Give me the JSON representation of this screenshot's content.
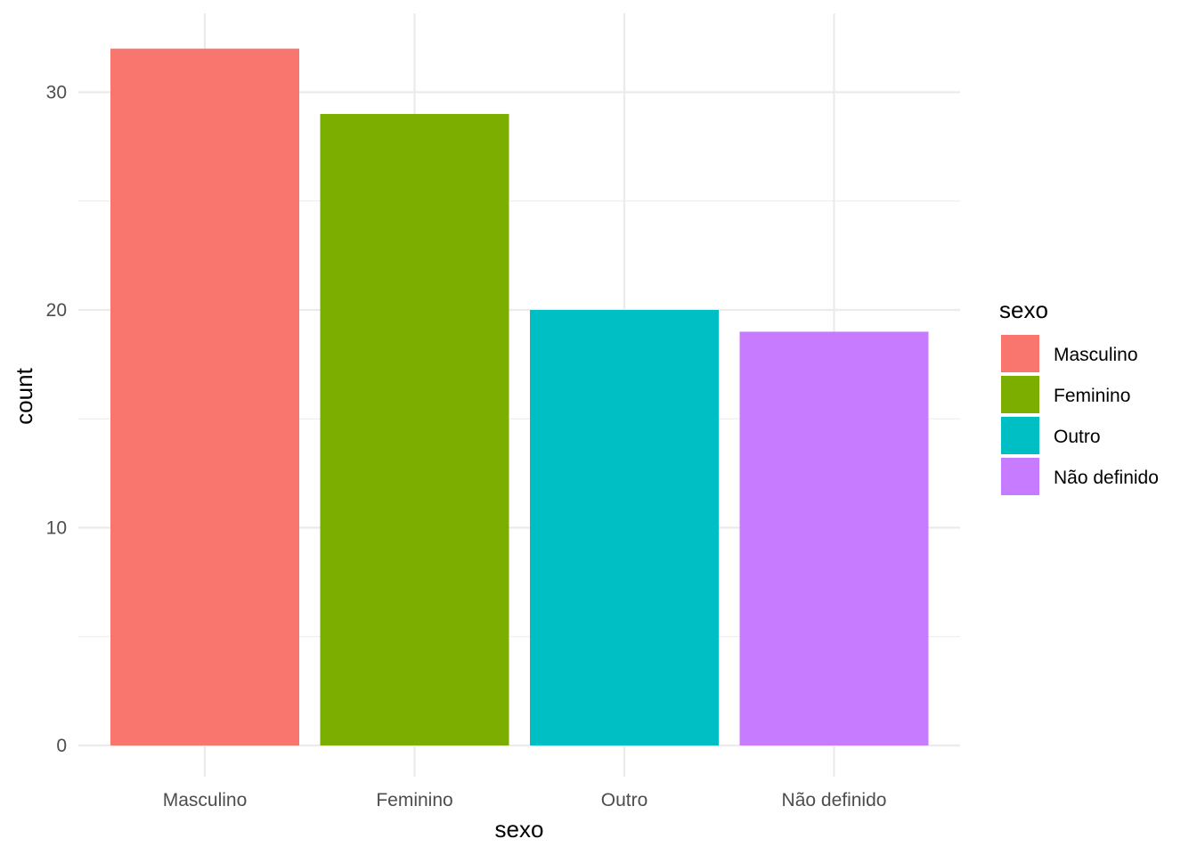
{
  "chart_data": {
    "type": "bar",
    "categories": [
      "Masculino",
      "Feminino",
      "Outro",
      "Não definido"
    ],
    "values": [
      32,
      29,
      20,
      19
    ],
    "colors": [
      "#F8766D",
      "#7CAE00",
      "#00BFC4",
      "#C77CFF"
    ],
    "xlabel": "sexo",
    "ylabel": "count",
    "ylim": [
      0,
      33.6
    ],
    "yticks": [
      0,
      10,
      20,
      30
    ],
    "grid": true,
    "legend": {
      "title": "sexo",
      "placement": "right",
      "entries": [
        "Masculino",
        "Feminino",
        "Outro",
        "Não definido"
      ]
    }
  }
}
